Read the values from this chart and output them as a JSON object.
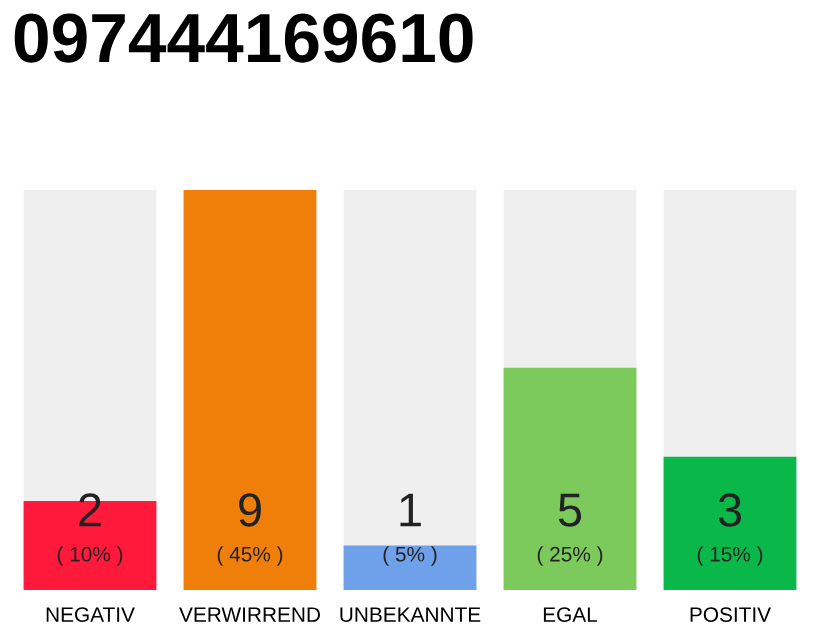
{
  "chart_data": {
    "type": "bar",
    "title": "097444169610",
    "categories": [
      "NEGATIV",
      "VERWIRREND",
      "UNBEKANNTE",
      "EGAL",
      "POSITIV"
    ],
    "values": [
      2,
      9,
      1,
      5,
      3
    ],
    "colors": [
      "#ff1a3c",
      "#f07f0a",
      "#6fa0ea",
      "#7dca5c",
      "#0ab84a"
    ],
    "value_labels": [
      "2\n( 10% )",
      "9\n( 45% )",
      "1\n( 5% )",
      "5\n( 25% )",
      "3\n( 15% )"
    ],
    "grid": false,
    "legend": false
  }
}
